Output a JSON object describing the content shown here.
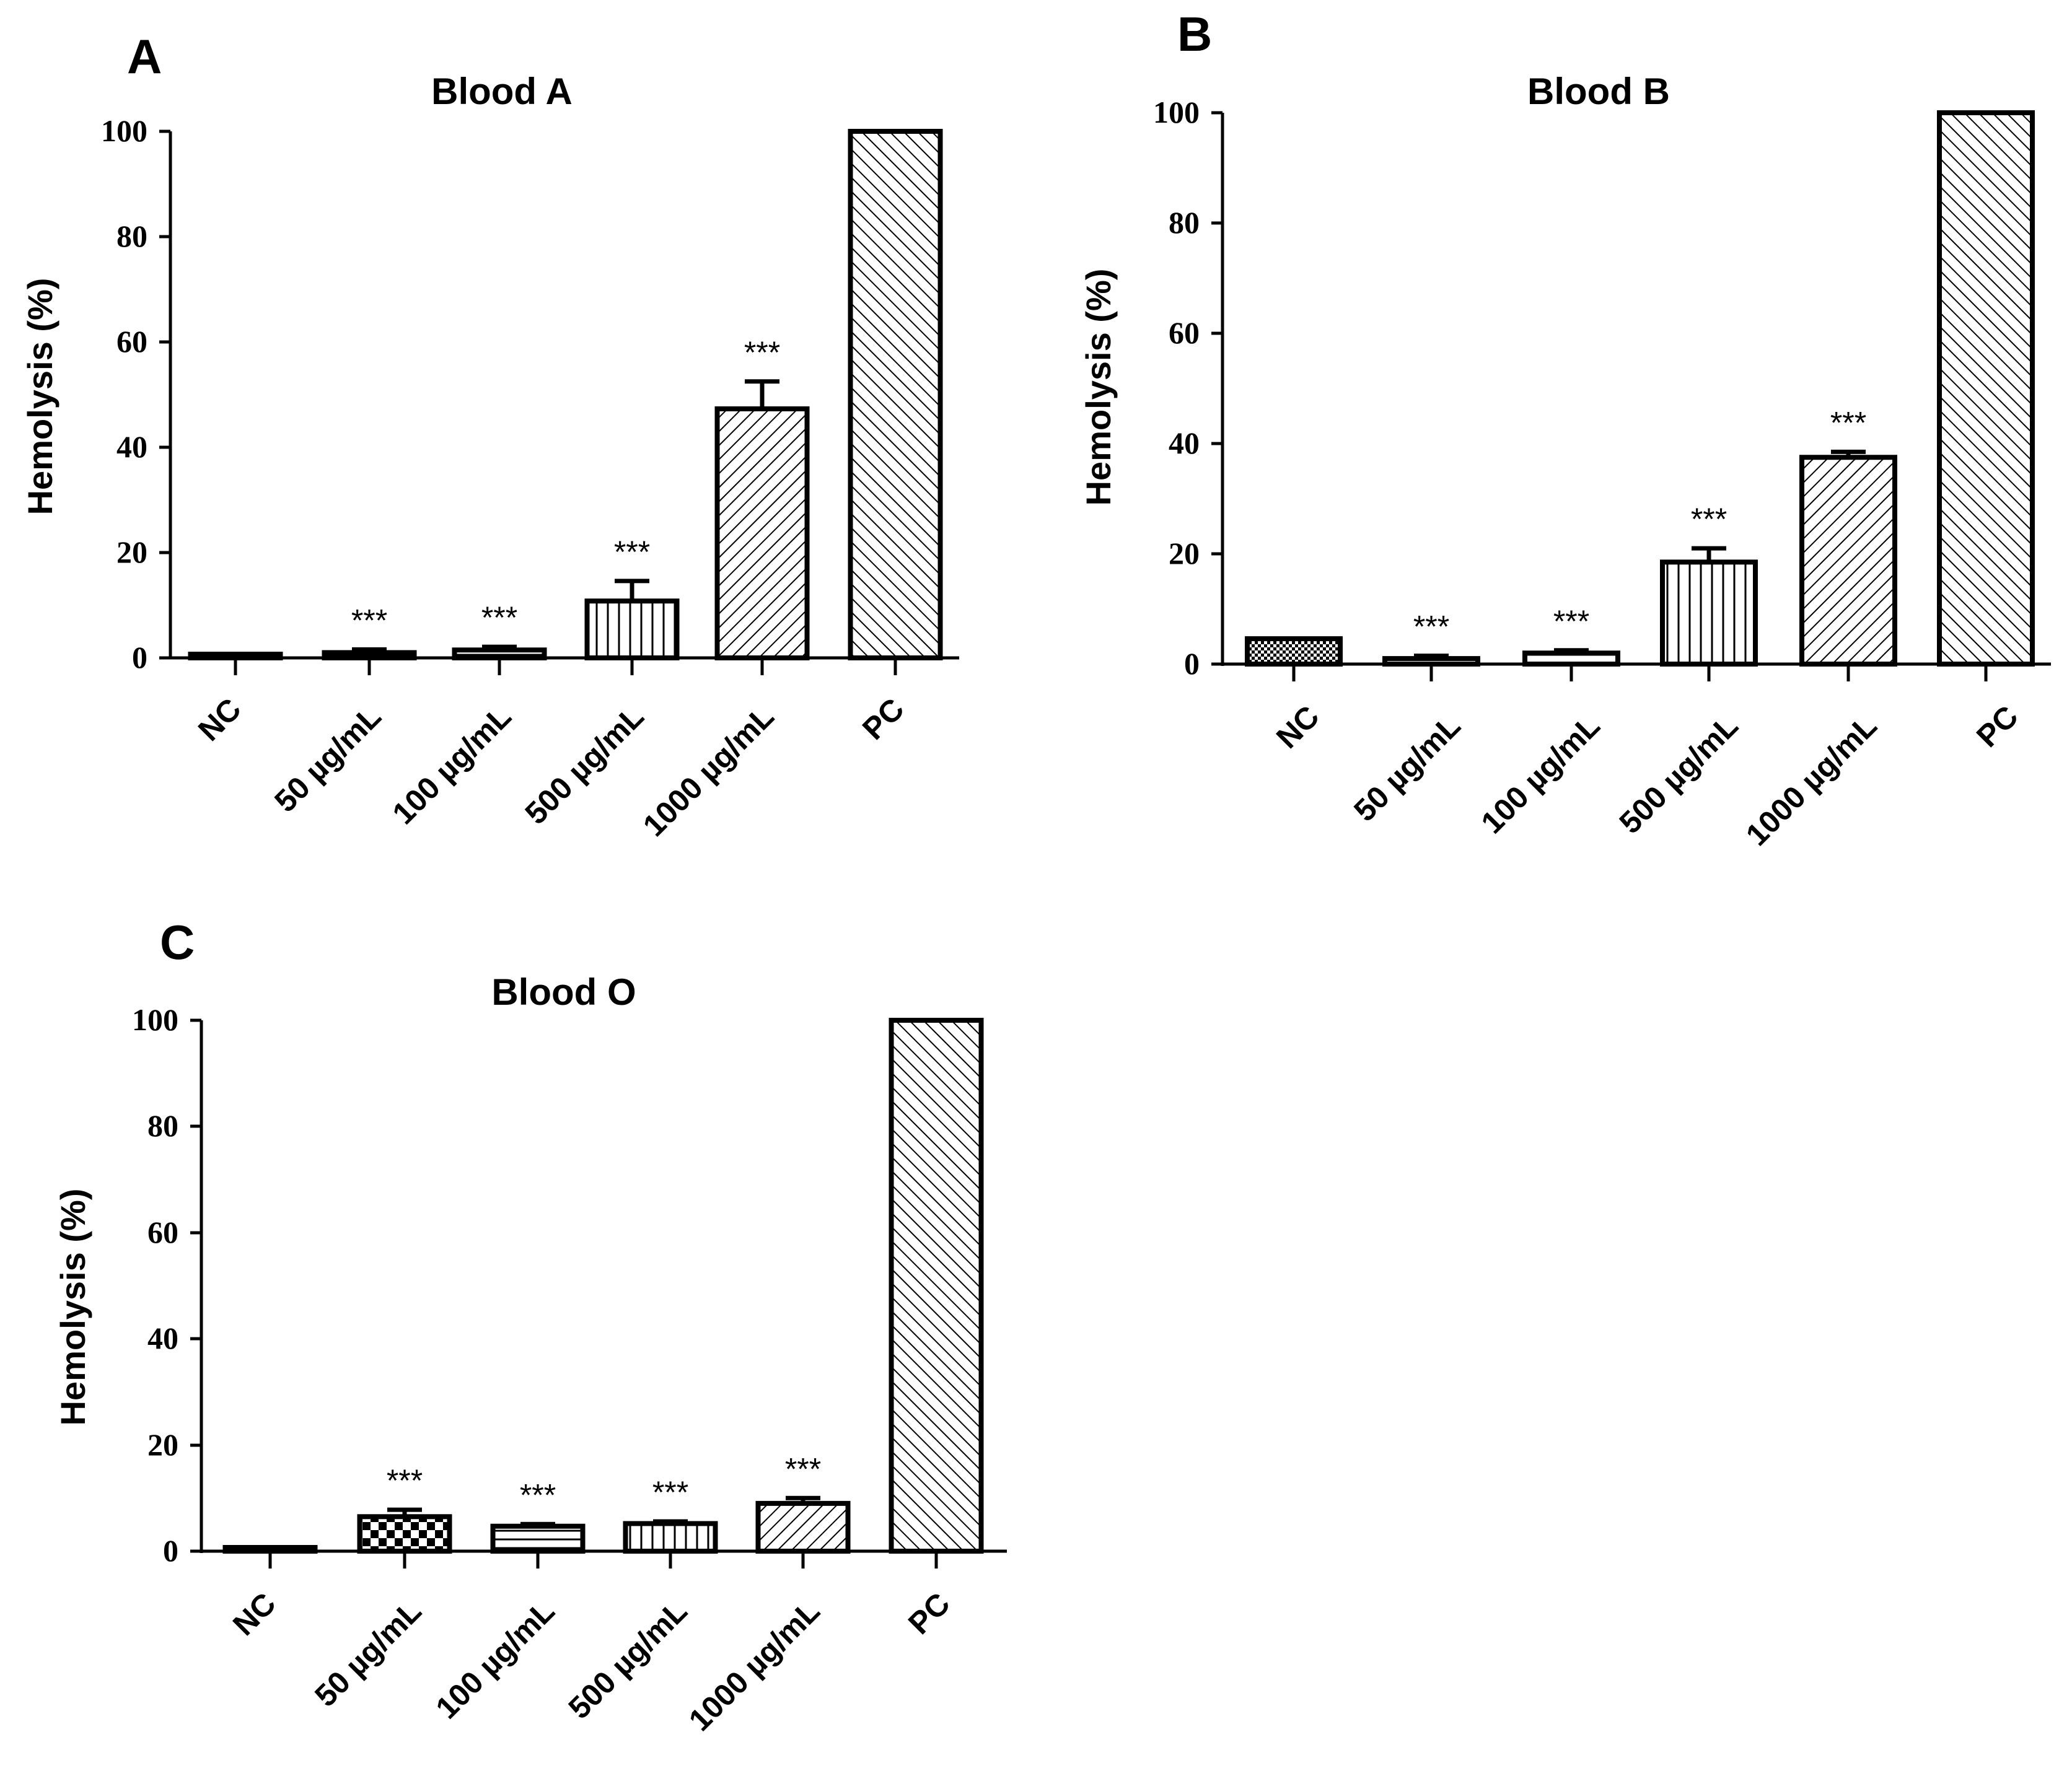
{
  "chart_data": [
    {
      "type": "bar",
      "panel": "A",
      "title": "Blood A",
      "xlabel": "",
      "ylabel": "Hemolysis (%)",
      "ylim": [
        0,
        100
      ],
      "yticks": [
        "0",
        "20",
        "40",
        "60",
        "80",
        "100"
      ],
      "grid": false,
      "categories": [
        "NC",
        "50 µg/mL",
        "100 µg/mL",
        "500 µg/mL",
        "1000 µg/mL",
        "PC"
      ],
      "values": [
        0.3,
        1.0,
        1.5,
        10.8,
        47.3,
        100
      ],
      "errors": [
        0,
        0.6,
        0.6,
        3.8,
        5.2,
        0
      ],
      "patterns": [
        "dots",
        "horizontal",
        "horizontal",
        "vertical",
        "diag-up",
        "diag-down"
      ],
      "annotations": [
        "",
        "***",
        "***",
        "***",
        "***",
        ""
      ]
    },
    {
      "type": "bar",
      "panel": "B",
      "title": "Blood B",
      "xlabel": "",
      "ylabel": "Hemolysis (%)",
      "ylim": [
        0,
        100
      ],
      "yticks": [
        "0",
        "20",
        "40",
        "60",
        "80",
        "100"
      ],
      "grid": false,
      "categories": [
        "NC",
        "50 µg/mL",
        "100 µg/mL",
        "500 µg/mL",
        "1000 µg/mL",
        "PC"
      ],
      "values": [
        4.6,
        1.0,
        2.0,
        18.5,
        37.5,
        100
      ],
      "errors": [
        0,
        0.5,
        0.5,
        2.5,
        1.0,
        0
      ],
      "patterns": [
        "dots",
        "horizontal",
        "horizontal",
        "vertical",
        "diag-up",
        "diag-down"
      ],
      "annotations": [
        "",
        "***",
        "***",
        "***",
        "***",
        ""
      ]
    },
    {
      "type": "bar",
      "panel": "C",
      "title": "Blood O",
      "xlabel": "",
      "ylabel": "Hemolysis (%)",
      "ylim": [
        0,
        100
      ],
      "yticks": [
        "0",
        "20",
        "40",
        "60",
        "80",
        "100"
      ],
      "grid": false,
      "categories": [
        "NC",
        "50 µg/mL",
        "100 µg/mL",
        "500 µg/mL",
        "1000 µg/mL",
        "PC"
      ],
      "values": [
        0.3,
        6.5,
        4.7,
        5.2,
        9.0,
        100
      ],
      "errors": [
        0,
        1.3,
        0.4,
        0.4,
        1.0,
        0
      ],
      "patterns": [
        "dots",
        "checker",
        "horizontal",
        "vertical",
        "diag-up",
        "diag-down"
      ],
      "annotations": [
        "",
        "***",
        "***",
        "***",
        "***",
        ""
      ]
    }
  ]
}
